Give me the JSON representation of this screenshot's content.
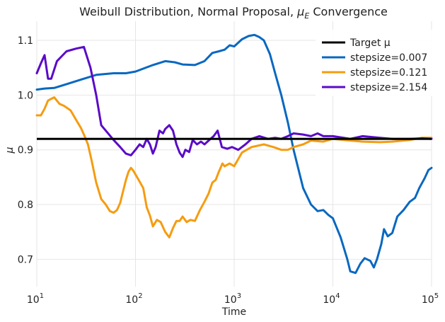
{
  "chart_data": {
    "type": "line",
    "title_prefix": "Weibull Distribution, Normal Proposal, ",
    "title_symbol": "μ",
    "title_subscript": "E",
    "title_suffix": " Convergence",
    "xlabel": "Time",
    "ylabel": "μ",
    "xscale": "log",
    "xlim": [
      10,
      100000
    ],
    "ylim": [
      0.65,
      1.135
    ],
    "grid": true,
    "legend_position": "top-right",
    "x_ticks": [
      {
        "value": 10,
        "base": "10",
        "exp": "1"
      },
      {
        "value": 100,
        "base": "10",
        "exp": "2"
      },
      {
        "value": 1000,
        "base": "10",
        "exp": "3"
      },
      {
        "value": 10000,
        "base": "10",
        "exp": "4"
      },
      {
        "value": 100000,
        "base": "10",
        "exp": "5"
      }
    ],
    "y_ticks": [
      {
        "value": 0.7,
        "label": "0.7"
      },
      {
        "value": 0.8,
        "label": "0.8"
      },
      {
        "value": 0.9,
        "label": "0.9"
      },
      {
        "value": 1.0,
        "label": "1.0"
      },
      {
        "value": 1.1,
        "label": "1.1"
      }
    ],
    "target": {
      "name": "Target μ",
      "value": 0.92,
      "color": "#000000"
    },
    "series": [
      {
        "name": "stepsize=0.007",
        "color": "#0868c0",
        "points": [
          [
            10,
            1.01
          ],
          [
            12,
            1.012
          ],
          [
            15,
            1.013
          ],
          [
            20,
            1.02
          ],
          [
            30,
            1.03
          ],
          [
            40,
            1.037
          ],
          [
            60,
            1.04
          ],
          [
            80,
            1.04
          ],
          [
            100,
            1.043
          ],
          [
            150,
            1.055
          ],
          [
            200,
            1.062
          ],
          [
            250,
            1.06
          ],
          [
            300,
            1.056
          ],
          [
            400,
            1.055
          ],
          [
            500,
            1.062
          ],
          [
            600,
            1.077
          ],
          [
            700,
            1.08
          ],
          [
            800,
            1.083
          ],
          [
            900,
            1.091
          ],
          [
            1000,
            1.089
          ],
          [
            1200,
            1.102
          ],
          [
            1400,
            1.108
          ],
          [
            1600,
            1.11
          ],
          [
            1800,
            1.106
          ],
          [
            2000,
            1.1
          ],
          [
            2300,
            1.075
          ],
          [
            2600,
            1.04
          ],
          [
            3000,
            1.0
          ],
          [
            3500,
            0.95
          ],
          [
            4000,
            0.9
          ],
          [
            5000,
            0.83
          ],
          [
            6000,
            0.8
          ],
          [
            7000,
            0.788
          ],
          [
            8000,
            0.79
          ],
          [
            9000,
            0.781
          ],
          [
            10000,
            0.775
          ],
          [
            12000,
            0.74
          ],
          [
            14000,
            0.7
          ],
          [
            15000,
            0.678
          ],
          [
            17000,
            0.675
          ],
          [
            19000,
            0.692
          ],
          [
            21000,
            0.702
          ],
          [
            24000,
            0.697
          ],
          [
            26000,
            0.685
          ],
          [
            28000,
            0.7
          ],
          [
            31000,
            0.728
          ],
          [
            33000,
            0.755
          ],
          [
            36000,
            0.742
          ],
          [
            40000,
            0.748
          ],
          [
            45000,
            0.778
          ],
          [
            52000,
            0.79
          ],
          [
            60000,
            0.805
          ],
          [
            68000,
            0.812
          ],
          [
            75000,
            0.83
          ],
          [
            85000,
            0.848
          ],
          [
            93000,
            0.863
          ],
          [
            100000,
            0.867
          ]
        ]
      },
      {
        "name": "stepsize=0.121",
        "color": "#f59c10",
        "points": [
          [
            10,
            0.963
          ],
          [
            11,
            0.963
          ],
          [
            12,
            0.975
          ],
          [
            13,
            0.99
          ],
          [
            15,
            0.996
          ],
          [
            17,
            0.984
          ],
          [
            19,
            0.98
          ],
          [
            22,
            0.972
          ],
          [
            25,
            0.955
          ],
          [
            28,
            0.94
          ],
          [
            30,
            0.928
          ],
          [
            33,
            0.91
          ],
          [
            36,
            0.88
          ],
          [
            40,
            0.84
          ],
          [
            45,
            0.81
          ],
          [
            50,
            0.8
          ],
          [
            55,
            0.788
          ],
          [
            60,
            0.785
          ],
          [
            65,
            0.79
          ],
          [
            70,
            0.803
          ],
          [
            75,
            0.825
          ],
          [
            80,
            0.845
          ],
          [
            85,
            0.86
          ],
          [
            90,
            0.867
          ],
          [
            95,
            0.862
          ],
          [
            100,
            0.855
          ],
          [
            110,
            0.842
          ],
          [
            120,
            0.83
          ],
          [
            130,
            0.795
          ],
          [
            140,
            0.78
          ],
          [
            150,
            0.76
          ],
          [
            165,
            0.772
          ],
          [
            180,
            0.768
          ],
          [
            200,
            0.75
          ],
          [
            220,
            0.74
          ],
          [
            240,
            0.757
          ],
          [
            260,
            0.77
          ],
          [
            280,
            0.77
          ],
          [
            300,
            0.778
          ],
          [
            330,
            0.768
          ],
          [
            360,
            0.772
          ],
          [
            400,
            0.77
          ],
          [
            450,
            0.79
          ],
          [
            500,
            0.805
          ],
          [
            550,
            0.82
          ],
          [
            600,
            0.84
          ],
          [
            650,
            0.845
          ],
          [
            700,
            0.86
          ],
          [
            760,
            0.875
          ],
          [
            800,
            0.87
          ],
          [
            900,
            0.875
          ],
          [
            1000,
            0.87
          ],
          [
            1200,
            0.895
          ],
          [
            1500,
            0.905
          ],
          [
            2000,
            0.91
          ],
          [
            2500,
            0.905
          ],
          [
            3000,
            0.9
          ],
          [
            3500,
            0.9
          ],
          [
            4000,
            0.905
          ],
          [
            5000,
            0.91
          ],
          [
            6000,
            0.917
          ],
          [
            8000,
            0.915
          ],
          [
            10000,
            0.92
          ],
          [
            15000,
            0.917
          ],
          [
            20000,
            0.915
          ],
          [
            30000,
            0.914
          ],
          [
            40000,
            0.915
          ],
          [
            60000,
            0.918
          ],
          [
            80000,
            0.922
          ],
          [
            100000,
            0.922
          ]
        ]
      },
      {
        "name": "stepsize=2.154",
        "color": "#5a0ac8",
        "points": [
          [
            10,
            1.04
          ],
          [
            11,
            1.058
          ],
          [
            12,
            1.073
          ],
          [
            13,
            1.03
          ],
          [
            14,
            1.03
          ],
          [
            16,
            1.062
          ],
          [
            20,
            1.08
          ],
          [
            25,
            1.085
          ],
          [
            30,
            1.088
          ],
          [
            35,
            1.05
          ],
          [
            40,
            1.0
          ],
          [
            45,
            0.945
          ],
          [
            50,
            0.935
          ],
          [
            60,
            0.918
          ],
          [
            70,
            0.905
          ],
          [
            80,
            0.893
          ],
          [
            90,
            0.89
          ],
          [
            100,
            0.9
          ],
          [
            110,
            0.91
          ],
          [
            120,
            0.905
          ],
          [
            130,
            0.92
          ],
          [
            140,
            0.91
          ],
          [
            150,
            0.893
          ],
          [
            160,
            0.905
          ],
          [
            175,
            0.935
          ],
          [
            190,
            0.93
          ],
          [
            200,
            0.938
          ],
          [
            220,
            0.945
          ],
          [
            240,
            0.935
          ],
          [
            260,
            0.91
          ],
          [
            280,
            0.895
          ],
          [
            300,
            0.887
          ],
          [
            320,
            0.9
          ],
          [
            350,
            0.896
          ],
          [
            380,
            0.918
          ],
          [
            420,
            0.91
          ],
          [
            460,
            0.915
          ],
          [
            500,
            0.91
          ],
          [
            560,
            0.918
          ],
          [
            620,
            0.925
          ],
          [
            680,
            0.935
          ],
          [
            750,
            0.905
          ],
          [
            850,
            0.902
          ],
          [
            950,
            0.905
          ],
          [
            1100,
            0.9
          ],
          [
            1300,
            0.91
          ],
          [
            1500,
            0.92
          ],
          [
            1800,
            0.925
          ],
          [
            2200,
            0.92
          ],
          [
            2600,
            0.922
          ],
          [
            3000,
            0.92
          ],
          [
            3500,
            0.925
          ],
          [
            4000,
            0.93
          ],
          [
            5000,
            0.928
          ],
          [
            6000,
            0.925
          ],
          [
            7000,
            0.93
          ],
          [
            8000,
            0.925
          ],
          [
            10000,
            0.925
          ],
          [
            15000,
            0.92
          ],
          [
            20000,
            0.925
          ],
          [
            30000,
            0.922
          ],
          [
            40000,
            0.92
          ],
          [
            60000,
            0.92
          ],
          [
            80000,
            0.921
          ],
          [
            100000,
            0.92
          ]
        ]
      }
    ]
  }
}
